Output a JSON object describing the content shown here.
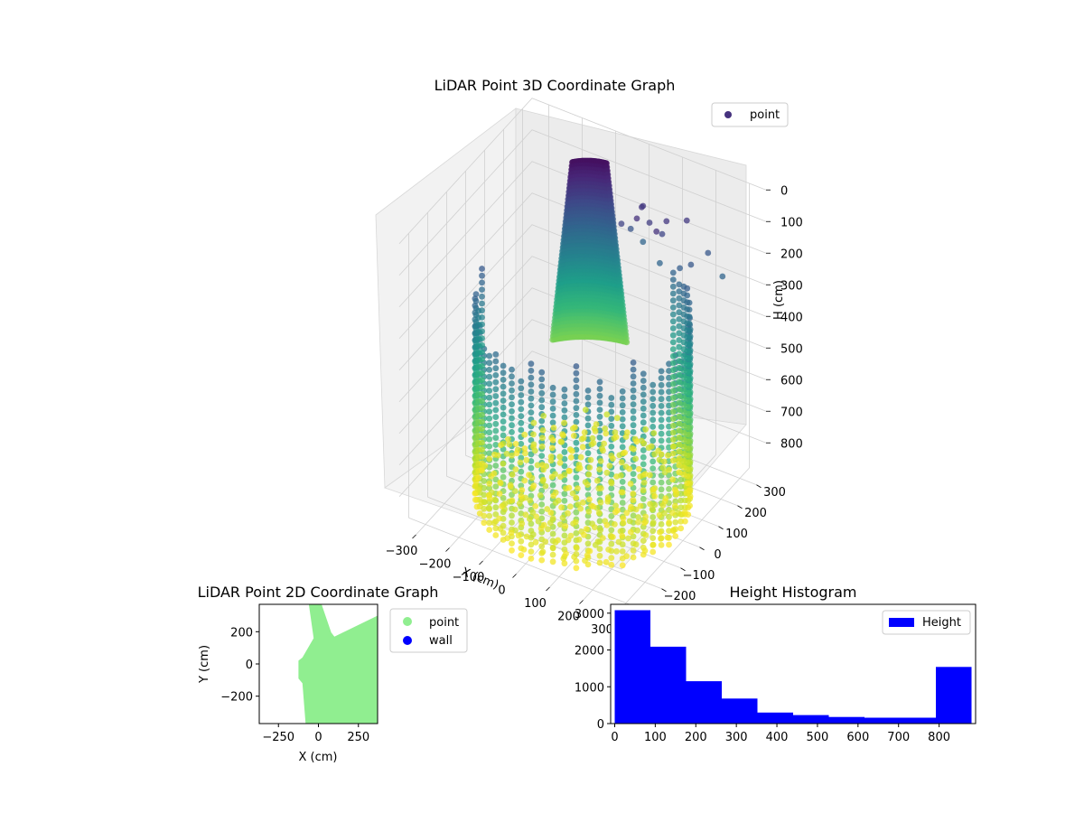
{
  "chart_data": [
    {
      "type": "scatter3d",
      "title": "LiDAR Point 3D Coordinate Graph",
      "xlabel": "X (cm)",
      "ylabel": "",
      "zlabel": "H (cm)",
      "xticks": [
        "−300",
        "−200",
        "−100",
        "0",
        "100",
        "200",
        "300"
      ],
      "yticks": [
        "−300",
        "−200",
        "−100",
        "0",
        "100",
        "200",
        "300"
      ],
      "zticks": [
        "0",
        "100",
        "200",
        "300",
        "400",
        "500",
        "600",
        "700",
        "800"
      ],
      "xlim": [
        -350,
        350
      ],
      "ylim": [
        -350,
        350
      ],
      "zlim": [
        0,
        900
      ],
      "z_inverted": true,
      "colormap": "viridis",
      "grid": true,
      "legend": {
        "location": "top-right",
        "entries": [
          {
            "label": "point",
            "color": "#46327e"
          }
        ]
      },
      "point_groups": [
        {
          "description": "cylindrical wall columns",
          "radius": 280,
          "height_range": [
            250,
            900
          ]
        },
        {
          "description": "floor disc",
          "radius": 280,
          "height_range": [
            780,
            900
          ]
        },
        {
          "description": "curved upper sheet",
          "height_range": [
            0,
            350
          ]
        },
        {
          "description": "scattered high points",
          "height_range": [
            0,
            250
          ]
        }
      ]
    },
    {
      "type": "scatter",
      "title": "LiDAR Point 2D Coordinate Graph",
      "xlabel": "X (cm)",
      "ylabel": "Y (cm)",
      "xticks": [
        "−250",
        "0",
        "250"
      ],
      "yticks": [
        "−200",
        "0",
        "200"
      ],
      "xlim": [
        -370,
        370
      ],
      "ylim": [
        -370,
        370
      ],
      "legend": {
        "location": "outside-right",
        "entries": [
          {
            "label": "point",
            "color": "#90ee90"
          },
          {
            "label": "wall",
            "color": "#0000ff"
          }
        ]
      }
    },
    {
      "type": "bar",
      "title": "Height Histogram",
      "xlabel": "",
      "ylabel": "",
      "bin_edges": [
        0,
        88,
        176,
        264,
        352,
        440,
        528,
        616,
        704,
        792,
        880
      ],
      "values": [
        3080,
        2090,
        1150,
        680,
        300,
        230,
        180,
        160,
        160,
        1540
      ],
      "xticks": [
        "0",
        "100",
        "200",
        "300",
        "400",
        "500",
        "600",
        "700",
        "800"
      ],
      "yticks": [
        "0",
        "1000",
        "2000",
        "3000"
      ],
      "xlim": [
        -10,
        890
      ],
      "ylim": [
        0,
        3240
      ],
      "color": "#0000ff",
      "legend": {
        "location": "top-right",
        "entries": [
          {
            "label": "Height",
            "color": "#0000ff"
          }
        ]
      }
    }
  ]
}
